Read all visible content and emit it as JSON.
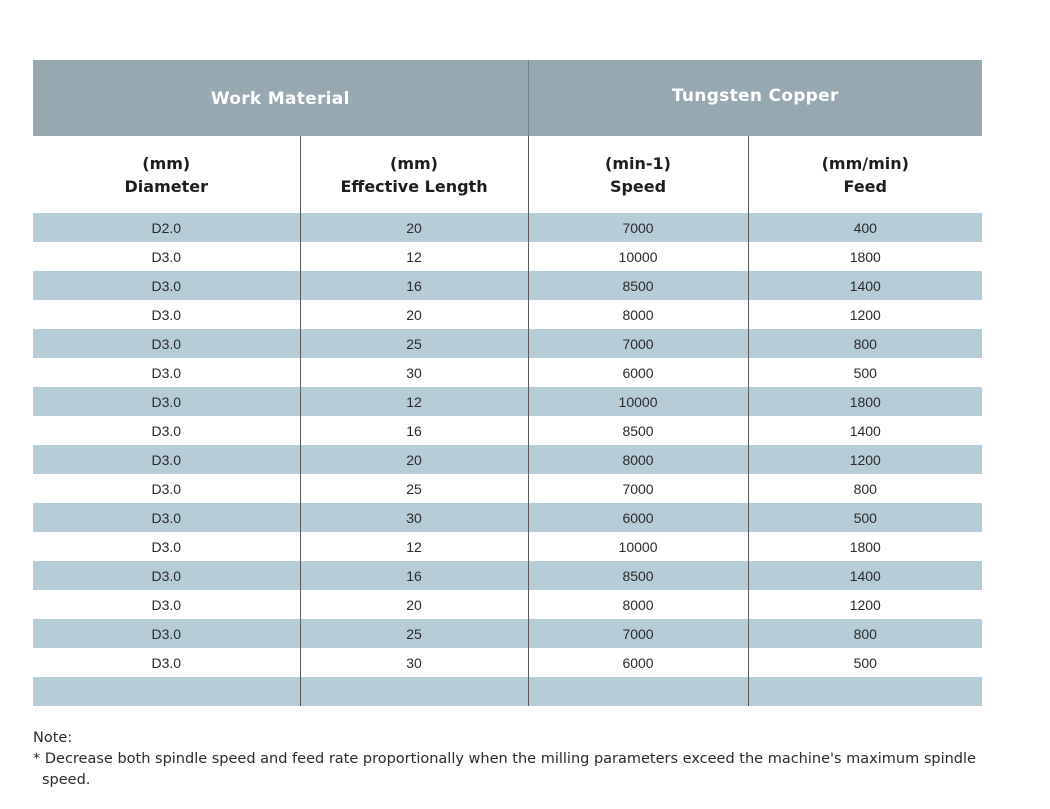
{
  "table": {
    "group_headers": {
      "work_material": "Work Material",
      "tungsten_copper": "Tungsten Copper"
    },
    "columns": [
      {
        "unit": "(mm)",
        "name": "Diameter"
      },
      {
        "unit": "(mm)",
        "name": "Effective Length"
      },
      {
        "unit": "(min-1)",
        "name": "Speed"
      },
      {
        "unit": "(mm/min)",
        "name": "Feed"
      }
    ],
    "rows": [
      [
        "D2.0",
        "20",
        "7000",
        "400"
      ],
      [
        "D3.0",
        "12",
        "10000",
        "1800"
      ],
      [
        "D3.0",
        "16",
        "8500",
        "1400"
      ],
      [
        "D3.0",
        "20",
        "8000",
        "1200"
      ],
      [
        "D3.0",
        "25",
        "7000",
        "800"
      ],
      [
        "D3.0",
        "30",
        "6000",
        "500"
      ],
      [
        "D3.0",
        "12",
        "10000",
        "1800"
      ],
      [
        "D3.0",
        "16",
        "8500",
        "1400"
      ],
      [
        "D3.0",
        "20",
        "8000",
        "1200"
      ],
      [
        "D3.0",
        "25",
        "7000",
        "800"
      ],
      [
        "D3.0",
        "30",
        "6000",
        "500"
      ],
      [
        "D3.0",
        "12",
        "10000",
        "1800"
      ],
      [
        "D3.0",
        "16",
        "8500",
        "1400"
      ],
      [
        "D3.0",
        "20",
        "8000",
        "1200"
      ],
      [
        "D3.0",
        "25",
        "7000",
        "800"
      ],
      [
        "D3.0",
        "30",
        "6000",
        "500"
      ],
      [
        "",
        "",
        "",
        ""
      ]
    ]
  },
  "note": {
    "label": "Note:",
    "text": "* Decrease both spindle speed and feed rate proportionally when the milling parameters exceed the machine's maximum spindle speed."
  },
  "colors": {
    "header_band": "#97a8b1",
    "stripe": "#b6cdd8",
    "divider": "#5a5a5a"
  }
}
